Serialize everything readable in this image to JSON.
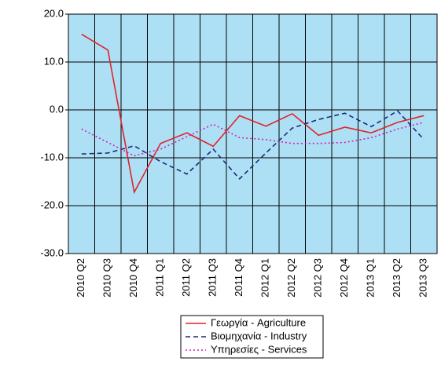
{
  "chart_data": {
    "type": "line",
    "categories": [
      "2010 Q2",
      "2010 Q3",
      "2010 Q4",
      "2011 Q1",
      "2011 Q2",
      "2011 Q3",
      "2011 Q4",
      "2012 Q1",
      "2012 Q2",
      "2012 Q3",
      "2012 Q4",
      "2013 Q1",
      "2013 Q2",
      "2013 Q3"
    ],
    "series": [
      {
        "name": "Γεωργία - Agriculture",
        "color": "#e0232a",
        "dash": "solid",
        "values": [
          15.8,
          12.5,
          -17.2,
          -7.0,
          -4.8,
          -7.6,
          -1.2,
          -3.4,
          -0.8,
          -5.3,
          -3.6,
          -4.8,
          -2.6,
          -1.2
        ]
      },
      {
        "name": "Βιομηχανία - Industry",
        "color": "#1f2a7a",
        "dash": "dashed",
        "values": [
          -9.2,
          -9.0,
          -7.5,
          -10.8,
          -13.4,
          -8.2,
          -14.4,
          -9.0,
          -3.8,
          -2.0,
          -0.7,
          -3.5,
          -0.2,
          -6.2
        ]
      },
      {
        "name": "Υπηρεσίες - Services",
        "color": "#d020b0",
        "dash": "dotted",
        "values": [
          -4.0,
          -6.8,
          -9.6,
          -8.2,
          -5.6,
          -3.0,
          -5.8,
          -6.2,
          -7.0,
          -7.0,
          -6.8,
          -5.8,
          -4.0,
          -2.6
        ]
      }
    ],
    "ylim": [
      -30,
      20
    ],
    "yticks": [
      {
        "value": -30,
        "label": "-30.0"
      },
      {
        "value": -20,
        "label": "-20.0"
      },
      {
        "value": -10,
        "label": "-10.0"
      },
      {
        "value": 0,
        "label": "0.0"
      },
      {
        "value": 10,
        "label": "10.0"
      },
      {
        "value": 20,
        "label": "20.0"
      }
    ],
    "grid": true,
    "plot_background": "#aee0f5",
    "legend": "bottom"
  }
}
